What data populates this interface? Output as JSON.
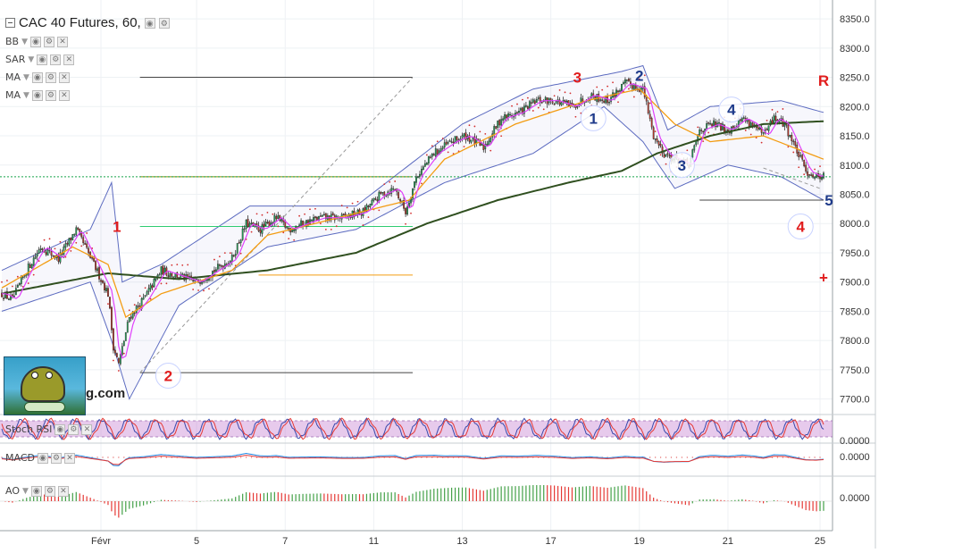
{
  "header": {
    "title": "CAC 40 Futures, 60,",
    "indicators": [
      "BB",
      "SAR",
      "MA",
      "MA"
    ]
  },
  "subpanels": {
    "stoch_rsi": {
      "label": "Stoch RSI",
      "value": "0.0000"
    },
    "macd": {
      "label": "MACD",
      "value": "0.0000"
    },
    "ao": {
      "label": "AO",
      "value": "0.0000"
    }
  },
  "logo": {
    "suffix_text": "g.com"
  },
  "colors": {
    "bull": "#26a65b",
    "bear": "#c0392b",
    "ma_slow": "#2f4f1f",
    "ma_fast": "#f39c12",
    "ma_pink": "#e040fb",
    "bb": "#5c6bc0",
    "sar": "#d32f2f",
    "current_price": "#16a34a"
  },
  "chart_data": {
    "type": "candlestick",
    "title": "CAC 40 Futures, 60,",
    "x_tick_labels": [
      "Févr",
      "5",
      "7",
      "11",
      "13",
      "17",
      "19",
      "21",
      "25"
    ],
    "y_ticks": [
      8350,
      8300,
      8250,
      8200,
      8150,
      8100,
      8050,
      8000,
      7950,
      7900,
      7850,
      7800,
      7750,
      7700
    ],
    "y_tick_labels": [
      "8350.0",
      "8300.0",
      "8250.0",
      "8200.0",
      "8150.0",
      "8100.0",
      "8050.0",
      "8000.0",
      "7950.0",
      "7900.0",
      "7850.0",
      "7800.0",
      "7750.0",
      "7700.0"
    ],
    "ylim": [
      7675,
      8370
    ],
    "current_price": 8080,
    "price_path": [
      [
        0,
        7880
      ],
      [
        6,
        7870
      ],
      [
        14,
        7920
      ],
      [
        22,
        7960
      ],
      [
        32,
        7940
      ],
      [
        42,
        7990
      ],
      [
        52,
        7930
      ],
      [
        60,
        7880
      ],
      [
        63,
        7790
      ],
      [
        66,
        7760
      ],
      [
        72,
        7840
      ],
      [
        80,
        7870
      ],
      [
        90,
        7920
      ],
      [
        100,
        7910
      ],
      [
        110,
        7900
      ],
      [
        120,
        7920
      ],
      [
        130,
        7940
      ],
      [
        138,
        8000
      ],
      [
        146,
        7990
      ],
      [
        155,
        8010
      ],
      [
        162,
        7990
      ],
      [
        170,
        8000
      ],
      [
        180,
        8010
      ],
      [
        192,
        8010
      ],
      [
        204,
        8020
      ],
      [
        214,
        8050
      ],
      [
        222,
        8060
      ],
      [
        228,
        8020
      ],
      [
        234,
        8080
      ],
      [
        244,
        8120
      ],
      [
        254,
        8140
      ],
      [
        262,
        8150
      ],
      [
        272,
        8130
      ],
      [
        282,
        8180
      ],
      [
        292,
        8190
      ],
      [
        302,
        8210
      ],
      [
        312,
        8210
      ],
      [
        322,
        8200
      ],
      [
        332,
        8220
      ],
      [
        342,
        8210
      ],
      [
        352,
        8240
      ],
      [
        362,
        8230
      ],
      [
        368,
        8150
      ],
      [
        374,
        8120
      ],
      [
        380,
        8110
      ],
      [
        388,
        8100
      ],
      [
        394,
        8160
      ],
      [
        402,
        8170
      ],
      [
        410,
        8160
      ],
      [
        418,
        8180
      ],
      [
        424,
        8170
      ],
      [
        430,
        8150
      ],
      [
        436,
        8180
      ],
      [
        442,
        8170
      ],
      [
        448,
        8130
      ],
      [
        454,
        8090
      ],
      [
        460,
        8080
      ],
      [
        464,
        8085
      ]
    ],
    "series": [
      {
        "name": "MA",
        "role": "slow",
        "points": [
          [
            0,
            7880
          ],
          [
            60,
            7915
          ],
          [
            100,
            7905
          ],
          [
            150,
            7920
          ],
          [
            200,
            7950
          ],
          [
            240,
            8000
          ],
          [
            280,
            8040
          ],
          [
            320,
            8070
          ],
          [
            350,
            8090
          ],
          [
            370,
            8120
          ],
          [
            400,
            8150
          ],
          [
            430,
            8170
          ],
          [
            464,
            8175
          ]
        ]
      },
      {
        "name": "MA",
        "role": "fast",
        "points": [
          [
            0,
            7890
          ],
          [
            40,
            7960
          ],
          [
            60,
            7930
          ],
          [
            70,
            7840
          ],
          [
            90,
            7880
          ],
          [
            130,
            7920
          ],
          [
            150,
            7980
          ],
          [
            190,
            8010
          ],
          [
            230,
            8040
          ],
          [
            250,
            8110
          ],
          [
            290,
            8170
          ],
          [
            330,
            8210
          ],
          [
            360,
            8230
          ],
          [
            380,
            8170
          ],
          [
            400,
            8140
          ],
          [
            430,
            8150
          ],
          [
            464,
            8110
          ]
        ]
      }
    ],
    "bb_upper": [
      [
        0,
        7920
      ],
      [
        50,
        7990
      ],
      [
        62,
        8070
      ],
      [
        68,
        7900
      ],
      [
        90,
        7930
      ],
      [
        140,
        8030
      ],
      [
        200,
        8030
      ],
      [
        260,
        8170
      ],
      [
        300,
        8230
      ],
      [
        350,
        8260
      ],
      [
        362,
        8270
      ],
      [
        376,
        8160
      ],
      [
        400,
        8200
      ],
      [
        440,
        8210
      ],
      [
        464,
        8190
      ]
    ],
    "bb_lower": [
      [
        0,
        7850
      ],
      [
        50,
        7900
      ],
      [
        62,
        7800
      ],
      [
        72,
        7700
      ],
      [
        100,
        7860
      ],
      [
        150,
        7960
      ],
      [
        200,
        7990
      ],
      [
        250,
        8070
      ],
      [
        300,
        8120
      ],
      [
        340,
        8200
      ],
      [
        362,
        8140
      ],
      [
        380,
        8060
      ],
      [
        410,
        8100
      ],
      [
        440,
        8080
      ],
      [
        464,
        8040
      ]
    ],
    "horizontal_levels": [
      {
        "y": 8250,
        "from": 78,
        "to": 232,
        "color": "#444444"
      },
      {
        "y": 8080,
        "from": 78,
        "to": 232,
        "color": "#8b8b00"
      },
      {
        "y": 7995,
        "from": 78,
        "to": 232,
        "color": "#2ecc71"
      },
      {
        "y": 7912,
        "from": 145,
        "to": 232,
        "color": "#f39c12"
      },
      {
        "y": 7745,
        "from": 78,
        "to": 232,
        "color": "#444444"
      },
      {
        "y": 8040,
        "from": 394,
        "to": 464,
        "color": "#444444"
      }
    ],
    "trendlines": [
      {
        "x1": 78,
        "y1": 7745,
        "x2": 232,
        "y2": 8250,
        "color": "#999999",
        "dash": true
      },
      {
        "x1": 430,
        "y1": 8095,
        "x2": 462,
        "y2": 8060,
        "color": "#999999",
        "dash": true
      }
    ],
    "wave_labels": [
      {
        "label": "1",
        "x": 65,
        "y": 7995,
        "color": "#e11d1d",
        "bubble": false
      },
      {
        "label": "2",
        "x": 94,
        "y": 7740,
        "color": "#e11d1d",
        "bubble": true
      },
      {
        "label": "3",
        "x": 325,
        "y": 8250,
        "color": "#e11d1d",
        "bubble": false
      },
      {
        "label": "4",
        "x": 451,
        "y": 7995,
        "color": "#e11d1d",
        "bubble": true
      },
      {
        "label": "R",
        "x": 464,
        "y": 8245,
        "color": "#e11d1d",
        "bubble": false
      },
      {
        "label": "+",
        "x": 464,
        "y": 7908,
        "color": "#e11d1d",
        "bubble": false
      },
      {
        "label": "1",
        "x": 334,
        "y": 8180,
        "color": "#1e3a8a",
        "bubble": true
      },
      {
        "label": "2",
        "x": 360,
        "y": 8253,
        "color": "#1e3a8a",
        "bubble": false
      },
      {
        "label": "3",
        "x": 384,
        "y": 8100,
        "color": "#1e3a8a",
        "bubble": true
      },
      {
        "label": "4",
        "x": 412,
        "y": 8195,
        "color": "#1e3a8a",
        "bubble": true
      },
      {
        "label": "5",
        "x": 467,
        "y": 8040,
        "color": "#1e3a8a",
        "bubble": false
      }
    ]
  }
}
